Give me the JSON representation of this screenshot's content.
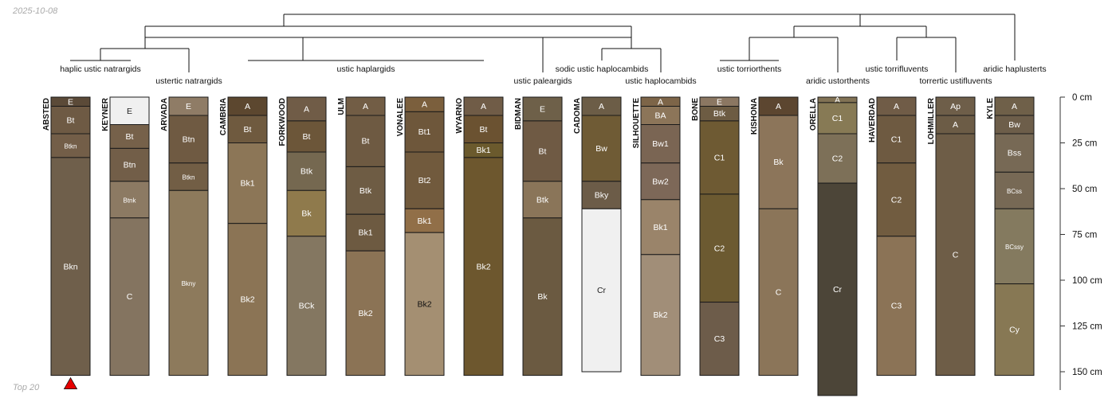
{
  "header": {
    "date": "2025-10-08"
  },
  "footer": {
    "caption": "Top 20"
  },
  "chart_data": {
    "type": "soil-profile-sketch",
    "title": "",
    "depth_unit": "cm",
    "depth_ylim": [
      0,
      160
    ],
    "depth_axis": {
      "ticks": [
        0,
        25,
        50,
        75,
        100,
        125,
        150
      ],
      "labels": [
        "0 cm",
        "25 cm",
        "50 cm",
        "75 cm",
        "100 cm",
        "125 cm",
        "150 cm"
      ]
    },
    "marker": {
      "profile": "ABSTED",
      "shape": "triangle",
      "color": "#e60000"
    },
    "taxa": [
      {
        "name": "haplic ustic natrargids",
        "profiles": [
          "ABSTED",
          "KEYNER"
        ]
      },
      {
        "name": "ustertic natrargids",
        "profiles": [
          "ARVADA"
        ]
      },
      {
        "name": "ustic haplargids",
        "profiles": [
          "CAMBRIA",
          "FORKWOOD",
          "ULM",
          "VONALEE",
          "WYARNO"
        ]
      },
      {
        "name": "ustic paleargids",
        "profiles": [
          "BIDMAN"
        ]
      },
      {
        "name": "sodic ustic haplocambids",
        "profiles": [
          "CADOMA"
        ]
      },
      {
        "name": "ustic haplocambids",
        "profiles": [
          "SILHOUETTE"
        ]
      },
      {
        "name": "ustic torriorthents",
        "profiles": [
          "BONE",
          "KISHONA"
        ]
      },
      {
        "name": "aridic ustorthents",
        "profiles": [
          "ORELLA"
        ]
      },
      {
        "name": "ustic torrifluvents",
        "profiles": [
          "HAVERDAD"
        ]
      },
      {
        "name": "torrertic ustifluvents",
        "profiles": [
          "LOHMILLER"
        ]
      },
      {
        "name": "aridic haplusterts",
        "profiles": [
          "KYLE"
        ]
      }
    ],
    "profiles": [
      {
        "name": "ABSTED",
        "horizons": [
          {
            "name": "E",
            "top": 0,
            "bottom": 5,
            "color": "#5b4a38"
          },
          {
            "name": "Bt",
            "top": 5,
            "bottom": 20,
            "color": "#6e5a44"
          },
          {
            "name": "Btkn",
            "top": 20,
            "bottom": 33,
            "color": "#735e48"
          },
          {
            "name": "Bkn",
            "top": 33,
            "bottom": 152,
            "color": "#6f5f4b"
          }
        ]
      },
      {
        "name": "KEYNER",
        "horizons": [
          {
            "name": "E",
            "top": 0,
            "bottom": 15,
            "color": "#f0f0f0"
          },
          {
            "name": "Bt",
            "top": 15,
            "bottom": 28,
            "color": "#76614a"
          },
          {
            "name": "Btn",
            "top": 28,
            "bottom": 46,
            "color": "#725e48"
          },
          {
            "name": "Btnk",
            "top": 46,
            "bottom": 66,
            "color": "#8c7a63"
          },
          {
            "name": "C",
            "top": 66,
            "bottom": 152,
            "color": "#847460"
          }
        ]
      },
      {
        "name": "ARVADA",
        "horizons": [
          {
            "name": "E",
            "top": 0,
            "bottom": 10,
            "color": "#8f7c66"
          },
          {
            "name": "Btn",
            "top": 10,
            "bottom": 36,
            "color": "#6f5a42"
          },
          {
            "name": "Btkn",
            "top": 36,
            "bottom": 51,
            "color": "#725e45"
          },
          {
            "name": "Bkny",
            "top": 51,
            "bottom": 152,
            "color": "#8d7a5c"
          }
        ]
      },
      {
        "name": "CAMBRIA",
        "horizons": [
          {
            "name": "A",
            "top": 0,
            "bottom": 10,
            "color": "#5c472f"
          },
          {
            "name": "Bt",
            "top": 10,
            "bottom": 25,
            "color": "#6f5a3f"
          },
          {
            "name": "Bk1",
            "top": 25,
            "bottom": 69,
            "color": "#8c7657"
          },
          {
            "name": "Bk2",
            "top": 69,
            "bottom": 152,
            "color": "#8b7455"
          }
        ]
      },
      {
        "name": "FORKWOOD",
        "horizons": [
          {
            "name": "A",
            "top": 0,
            "bottom": 13,
            "color": "#705c47"
          },
          {
            "name": "Bt",
            "top": 13,
            "bottom": 30,
            "color": "#6c5639"
          },
          {
            "name": "Btk",
            "top": 30,
            "bottom": 51,
            "color": "#756850"
          },
          {
            "name": "Bk",
            "top": 51,
            "bottom": 76,
            "color": "#8f7a4c"
          },
          {
            "name": "BCk",
            "top": 76,
            "bottom": 152,
            "color": "#847761"
          }
        ]
      },
      {
        "name": "ULM",
        "horizons": [
          {
            "name": "A",
            "top": 0,
            "bottom": 10,
            "color": "#725d45"
          },
          {
            "name": "Bt",
            "top": 10,
            "bottom": 38,
            "color": "#6e5a42"
          },
          {
            "name": "Btk",
            "top": 38,
            "bottom": 64,
            "color": "#6e5c44"
          },
          {
            "name": "Bk1",
            "top": 64,
            "bottom": 84,
            "color": "#6d5a41"
          },
          {
            "name": "Bk2",
            "top": 84,
            "bottom": 152,
            "color": "#8b7355"
          }
        ]
      },
      {
        "name": "VONALEE",
        "horizons": [
          {
            "name": "A",
            "top": 0,
            "bottom": 8,
            "color": "#7b5f3d"
          },
          {
            "name": "Bt1",
            "top": 8,
            "bottom": 30,
            "color": "#6e573b"
          },
          {
            "name": "Bt2",
            "top": 30,
            "bottom": 61,
            "color": "#715a3d"
          },
          {
            "name": "Bk1",
            "top": 61,
            "bottom": 74,
            "color": "#916f48"
          },
          {
            "name": "Bk2",
            "top": 74,
            "bottom": 152,
            "color": "#a48f72"
          }
        ]
      },
      {
        "name": "WYARNO",
        "horizons": [
          {
            "name": "A",
            "top": 0,
            "bottom": 10,
            "color": "#705c47"
          },
          {
            "name": "Bt",
            "top": 10,
            "bottom": 25,
            "color": "#6b5231"
          },
          {
            "name": "Bk1",
            "top": 25,
            "bottom": 33,
            "color": "#6b5a2d"
          },
          {
            "name": "Bk2",
            "top": 33,
            "bottom": 152,
            "color": "#6d572e"
          }
        ]
      },
      {
        "name": "BIDMAN",
        "horizons": [
          {
            "name": "E",
            "top": 0,
            "bottom": 13,
            "color": "#6e6049"
          },
          {
            "name": "Bt",
            "top": 13,
            "bottom": 46,
            "color": "#6f5a44"
          },
          {
            "name": "Btk",
            "top": 46,
            "bottom": 66,
            "color": "#8a7559"
          },
          {
            "name": "Bk",
            "top": 66,
            "bottom": 152,
            "color": "#6b5a41"
          }
        ]
      },
      {
        "name": "CADOMA",
        "horizons": [
          {
            "name": "A",
            "top": 0,
            "bottom": 10,
            "color": "#6c5d47"
          },
          {
            "name": "Bw",
            "top": 10,
            "bottom": 46,
            "color": "#6f5b35"
          },
          {
            "name": "Bky",
            "top": 46,
            "bottom": 61,
            "color": "#6c5c48"
          },
          {
            "name": "Cr",
            "top": 61,
            "bottom": 150,
            "color": "#f0f0f0"
          }
        ]
      },
      {
        "name": "SILHOUETTE",
        "horizons": [
          {
            "name": "A",
            "top": 0,
            "bottom": 5,
            "color": "#7d6548"
          },
          {
            "name": "BA",
            "top": 5,
            "bottom": 15,
            "color": "#8c7559"
          },
          {
            "name": "Bw1",
            "top": 15,
            "bottom": 36,
            "color": "#7a6553"
          },
          {
            "name": "Bw2",
            "top": 36,
            "bottom": 56,
            "color": "#7d6858"
          },
          {
            "name": "Bk1",
            "top": 56,
            "bottom": 86,
            "color": "#9a846a"
          },
          {
            "name": "Bk2",
            "top": 86,
            "bottom": 152,
            "color": "#a18e78"
          }
        ]
      },
      {
        "name": "BONE",
        "horizons": [
          {
            "name": "E",
            "top": 0,
            "bottom": 5,
            "color": "#8b7762"
          },
          {
            "name": "Btk",
            "top": 5,
            "bottom": 13,
            "color": "#6d5c43"
          },
          {
            "name": "C1",
            "top": 13,
            "bottom": 53,
            "color": "#6e5a33"
          },
          {
            "name": "C2",
            "top": 53,
            "bottom": 112,
            "color": "#6c5a31"
          },
          {
            "name": "C3",
            "top": 112,
            "bottom": 152,
            "color": "#6d5c4a"
          }
        ]
      },
      {
        "name": "KISHONA",
        "horizons": [
          {
            "name": "A",
            "top": 0,
            "bottom": 10,
            "color": "#5c4630"
          },
          {
            "name": "Bk",
            "top": 10,
            "bottom": 61,
            "color": "#8c755a"
          },
          {
            "name": "C",
            "top": 61,
            "bottom": 152,
            "color": "#8b7559"
          }
        ]
      },
      {
        "name": "ORELLA",
        "horizons": [
          {
            "name": "A",
            "top": 0,
            "bottom": 3,
            "color": "#817254"
          },
          {
            "name": "C1",
            "top": 3,
            "bottom": 20,
            "color": "#877a55"
          },
          {
            "name": "C2",
            "top": 20,
            "bottom": 47,
            "color": "#7d7058"
          },
          {
            "name": "Cr",
            "top": 47,
            "bottom": 163,
            "color": "#4c4538"
          }
        ]
      },
      {
        "name": "HAVERDAD",
        "horizons": [
          {
            "name": "A",
            "top": 0,
            "bottom": 10,
            "color": "#705c47"
          },
          {
            "name": "C1",
            "top": 10,
            "bottom": 36,
            "color": "#6e5a41"
          },
          {
            "name": "C2",
            "top": 36,
            "bottom": 76,
            "color": "#715c40"
          },
          {
            "name": "C3",
            "top": 76,
            "bottom": 152,
            "color": "#8b7356"
          }
        ]
      },
      {
        "name": "LOHMILLER",
        "horizons": [
          {
            "name": "Ap",
            "top": 0,
            "bottom": 10,
            "color": "#6e5e49"
          },
          {
            "name": "A",
            "top": 10,
            "bottom": 20,
            "color": "#6c5c46"
          },
          {
            "name": "C",
            "top": 20,
            "bottom": 152,
            "color": "#6e5d47"
          }
        ]
      },
      {
        "name": "KYLE",
        "horizons": [
          {
            "name": "A",
            "top": 0,
            "bottom": 10,
            "color": "#6f6049"
          },
          {
            "name": "Bw",
            "top": 10,
            "bottom": 20,
            "color": "#6d5e4a"
          },
          {
            "name": "Bss",
            "top": 20,
            "bottom": 41,
            "color": "#776955"
          },
          {
            "name": "BCss",
            "top": 41,
            "bottom": 61,
            "color": "#776955"
          },
          {
            "name": "BCssy",
            "top": 61,
            "bottom": 102,
            "color": "#847a5f"
          },
          {
            "name": "Cy",
            "top": 102,
            "bottom": 152,
            "color": "#877854"
          }
        ]
      }
    ]
  }
}
